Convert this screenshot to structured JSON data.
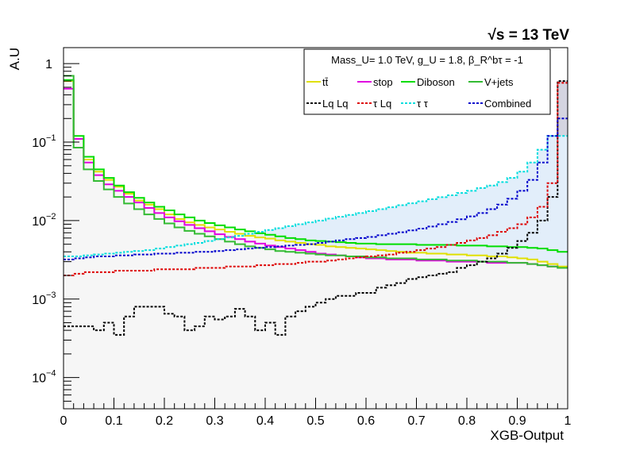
{
  "chart_data": {
    "type": "line",
    "xlabel": "XGB-Output",
    "ylabel": "A.U",
    "energy_label": "√s = 13 TeV",
    "x_scale": "linear",
    "y_scale": "log",
    "xlim": [
      0,
      1
    ],
    "ylim": [
      4e-05,
      1.6
    ],
    "x_ticks": [
      {
        "v": 0,
        "label": "0"
      },
      {
        "v": 0.1,
        "label": "0.1"
      },
      {
        "v": 0.2,
        "label": "0.2"
      },
      {
        "v": 0.3,
        "label": "0.3"
      },
      {
        "v": 0.4,
        "label": "0.4"
      },
      {
        "v": 0.5,
        "label": "0.5"
      },
      {
        "v": 0.6,
        "label": "0.6"
      },
      {
        "v": 0.7,
        "label": "0.7"
      },
      {
        "v": 0.8,
        "label": "0.8"
      },
      {
        "v": 0.9,
        "label": "0.9"
      },
      {
        "v": 1,
        "label": "1"
      }
    ],
    "y_ticks": [
      {
        "v": 1,
        "base": "1",
        "exp": ""
      },
      {
        "v": 0.1,
        "base": "10",
        "exp": "−1"
      },
      {
        "v": 0.01,
        "base": "10",
        "exp": "−2"
      },
      {
        "v": 0.001,
        "base": "10",
        "exp": "−3"
      },
      {
        "v": 0.0001,
        "base": "10",
        "exp": "−4"
      }
    ],
    "legend": {
      "placement": "top-right",
      "title": "Mass_U= 1.0 TeV, g_U = 1.8, β_R^bτ = -1"
    },
    "n_bins": 50,
    "bin_width": 0.02,
    "series": [
      {
        "name": "tt̄",
        "color": "#e0e000",
        "style": "solid",
        "fill": "#f8f8f8",
        "values": [
          0.6,
          0.11,
          0.06,
          0.042,
          0.033,
          0.027,
          0.022,
          0.018,
          0.016,
          0.014,
          0.012,
          0.0105,
          0.0095,
          0.0088,
          0.0082,
          0.0077,
          0.0072,
          0.0068,
          0.0064,
          0.0061,
          0.0059,
          0.0056,
          0.0054,
          0.0052,
          0.005,
          0.0049,
          0.0047,
          0.0046,
          0.0045,
          0.0044,
          0.0043,
          0.0042,
          0.0041,
          0.004,
          0.0039,
          0.0039,
          0.0038,
          0.0038,
          0.0037,
          0.0037,
          0.0036,
          0.0036,
          0.0035,
          0.0035,
          0.0034,
          0.0033,
          0.0032,
          0.003,
          0.0028,
          0.0026
        ]
      },
      {
        "name": "stop",
        "color": "#e000e0",
        "style": "solid",
        "values": [
          0.48,
          0.11,
          0.055,
          0.038,
          0.029,
          0.024,
          0.02,
          0.017,
          0.0145,
          0.0125,
          0.011,
          0.0098,
          0.0088,
          0.008,
          0.0073,
          0.0067,
          0.0062,
          0.0058,
          0.0054,
          0.0051,
          0.0048,
          0.0046,
          0.0044,
          0.0042,
          0.004,
          0.0038,
          0.0037,
          0.0036,
          0.0035,
          0.0034,
          0.0033,
          0.0033,
          0.0032,
          0.0032,
          0.0032,
          0.0031,
          0.0031,
          0.0031,
          0.003,
          0.003,
          0.003,
          0.003,
          0.0029,
          0.0029,
          0.0029,
          0.0029,
          0.0028,
          0.0027,
          0.0026,
          0.0025
        ]
      },
      {
        "name": "Diboson",
        "color": "#00dd00",
        "style": "solid",
        "values": [
          0.62,
          0.12,
          0.065,
          0.045,
          0.035,
          0.028,
          0.023,
          0.0195,
          0.017,
          0.015,
          0.0135,
          0.012,
          0.011,
          0.01,
          0.0093,
          0.0087,
          0.0082,
          0.0077,
          0.0073,
          0.0069,
          0.0066,
          0.0063,
          0.006,
          0.0058,
          0.0056,
          0.0055,
          0.0054,
          0.0053,
          0.0052,
          0.0051,
          0.0051,
          0.005,
          0.005,
          0.005,
          0.005,
          0.0049,
          0.0049,
          0.0049,
          0.0049,
          0.0048,
          0.0048,
          0.0048,
          0.0047,
          0.0047,
          0.0046,
          0.0046,
          0.0045,
          0.0044,
          0.0042,
          0.004
        ]
      },
      {
        "name": "V+jets",
        "color": "#33bb33",
        "style": "solid",
        "values": [
          0.7,
          0.085,
          0.045,
          0.032,
          0.025,
          0.02,
          0.0165,
          0.014,
          0.012,
          0.0105,
          0.0092,
          0.0082,
          0.0074,
          0.0068,
          0.0063,
          0.0058,
          0.0054,
          0.005,
          0.0047,
          0.0045,
          0.0043,
          0.0041,
          0.004,
          0.0039,
          0.0038,
          0.0037,
          0.0036,
          0.0036,
          0.0035,
          0.0035,
          0.0034,
          0.0034,
          0.0033,
          0.0033,
          0.0033,
          0.0032,
          0.0032,
          0.0032,
          0.0031,
          0.0031,
          0.0031,
          0.003,
          0.003,
          0.003,
          0.0029,
          0.0029,
          0.0028,
          0.0027,
          0.0026,
          0.0025
        ]
      },
      {
        "name": "Lq Lq",
        "color": "#000000",
        "style": "dotted",
        "values": [
          0.00045,
          0.00045,
          0.00045,
          0.0004,
          0.0005,
          0.00035,
          0.0006,
          0.0008,
          0.0008,
          0.0008,
          0.00065,
          0.0006,
          0.0004,
          0.00045,
          0.0006,
          0.00055,
          0.0006,
          0.00075,
          0.0006,
          0.0004,
          0.0005,
          0.00035,
          0.0006,
          0.0007,
          0.0008,
          0.0009,
          0.001,
          0.0011,
          0.0011,
          0.0012,
          0.0012,
          0.0014,
          0.0015,
          0.0016,
          0.0018,
          0.0019,
          0.002,
          0.0021,
          0.0022,
          0.0025,
          0.0027,
          0.003,
          0.0033,
          0.0038,
          0.0045,
          0.0055,
          0.007,
          0.01,
          0.02,
          0.6
        ]
      },
      {
        "name": "τ Lq",
        "color": "#dd0000",
        "style": "dotted",
        "values": [
          0.002,
          0.0021,
          0.0022,
          0.0022,
          0.0022,
          0.0023,
          0.0023,
          0.0023,
          0.0023,
          0.0024,
          0.0024,
          0.0024,
          0.0024,
          0.0025,
          0.0025,
          0.0025,
          0.0026,
          0.0026,
          0.0026,
          0.0027,
          0.0027,
          0.0028,
          0.0028,
          0.0029,
          0.003,
          0.003,
          0.0031,
          0.0032,
          0.0033,
          0.0034,
          0.0035,
          0.0036,
          0.0037,
          0.0039,
          0.004,
          0.0042,
          0.0044,
          0.0046,
          0.0049,
          0.0052,
          0.0056,
          0.006,
          0.0065,
          0.0072,
          0.008,
          0.009,
          0.011,
          0.015,
          0.03,
          0.57
        ]
      },
      {
        "name": "τ τ",
        "color": "#00dddd",
        "style": "dotted",
        "values": [
          0.0035,
          0.0035,
          0.0036,
          0.0037,
          0.0038,
          0.0039,
          0.004,
          0.0041,
          0.0042,
          0.0044,
          0.0046,
          0.0048,
          0.005,
          0.0052,
          0.0055,
          0.0058,
          0.0061,
          0.0064,
          0.0068,
          0.0072,
          0.0076,
          0.008,
          0.0085,
          0.009,
          0.0095,
          0.01,
          0.0106,
          0.0112,
          0.0118,
          0.0125,
          0.0132,
          0.014,
          0.0148,
          0.0157,
          0.0166,
          0.0176,
          0.0187,
          0.0199,
          0.021,
          0.0225,
          0.024,
          0.026,
          0.028,
          0.031,
          0.035,
          0.042,
          0.055,
          0.08,
          0.12,
          0.12
        ]
      },
      {
        "name": "Combined",
        "color": "#0000cc",
        "style": "dotted",
        "values": [
          0.0032,
          0.0033,
          0.0034,
          0.0035,
          0.0035,
          0.0036,
          0.0036,
          0.0037,
          0.0037,
          0.0038,
          0.0038,
          0.0039,
          0.0039,
          0.004,
          0.004,
          0.0041,
          0.0042,
          0.0043,
          0.0044,
          0.0045,
          0.0046,
          0.0047,
          0.0048,
          0.0049,
          0.005,
          0.0052,
          0.0054,
          0.0056,
          0.0058,
          0.006,
          0.0062,
          0.0065,
          0.0068,
          0.0071,
          0.0075,
          0.0079,
          0.0084,
          0.009,
          0.0096,
          0.0104,
          0.0113,
          0.0125,
          0.014,
          0.016,
          0.019,
          0.024,
          0.033,
          0.055,
          0.12,
          0.2
        ]
      }
    ]
  }
}
